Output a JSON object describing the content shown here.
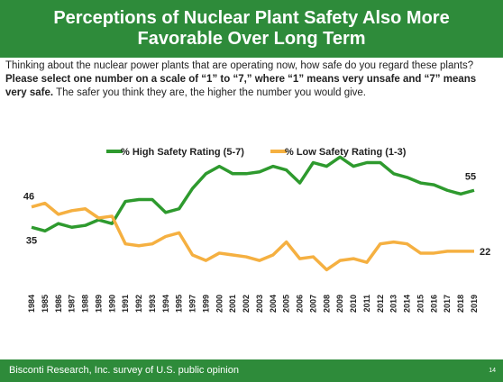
{
  "title": "Perceptions of Nuclear Plant Safety Also More Favorable Over Long Term",
  "question": [
    {
      "text": "Thinking about the nuclear power plants that are operating now, how safe do you regard these plants? ",
      "bold": false
    },
    {
      "text": "Please select one number on a scale of “1” to “7,” where “1” means very unsafe and “7” means very safe.",
      "bold": true
    },
    {
      "text": " The safer you think they are, the higher the number you would give.",
      "bold": false
    }
  ],
  "footer": {
    "source": "Bisconti Research, Inc. survey of U.S. public opinion",
    "page": "14"
  },
  "chart_data": {
    "type": "line",
    "categories": [
      "1984",
      "1985",
      "1986",
      "1987",
      "1988",
      "1989",
      "1990",
      "1991",
      "1992",
      "1993",
      "1994",
      "1995",
      "1997",
      "1999",
      "2000",
      "2001",
      "2002",
      "2003",
      "2004",
      "2005",
      "2006",
      "2007",
      "2008",
      "2009",
      "2010",
      "2011",
      "2012",
      "2013",
      "2014",
      "2015",
      "2016",
      "2017",
      "2018",
      "2019"
    ],
    "series": [
      {
        "name": "% High Safety Rating (5-7)",
        "color": "#2e9a2e",
        "values": [
          35,
          33,
          37,
          35,
          36,
          39,
          37,
          49,
          50,
          50,
          43,
          45,
          56,
          64,
          68,
          64,
          64,
          65,
          68,
          66,
          59,
          70,
          68,
          73,
          68,
          70,
          70,
          64,
          62,
          59,
          58,
          55,
          53,
          55
        ]
      },
      {
        "name": "% Low Safety Rating (1-3)",
        "color": "#f5b041",
        "values": [
          46,
          48,
          42,
          44,
          45,
          40,
          41,
          26,
          25,
          26,
          30,
          32,
          20,
          17,
          21,
          20,
          19,
          17,
          20,
          27,
          18,
          19,
          12,
          17,
          18,
          16,
          26,
          27,
          26,
          21,
          21,
          22,
          22,
          22
        ]
      }
    ],
    "ylim": [
      0,
      80
    ],
    "legend": "top"
  }
}
